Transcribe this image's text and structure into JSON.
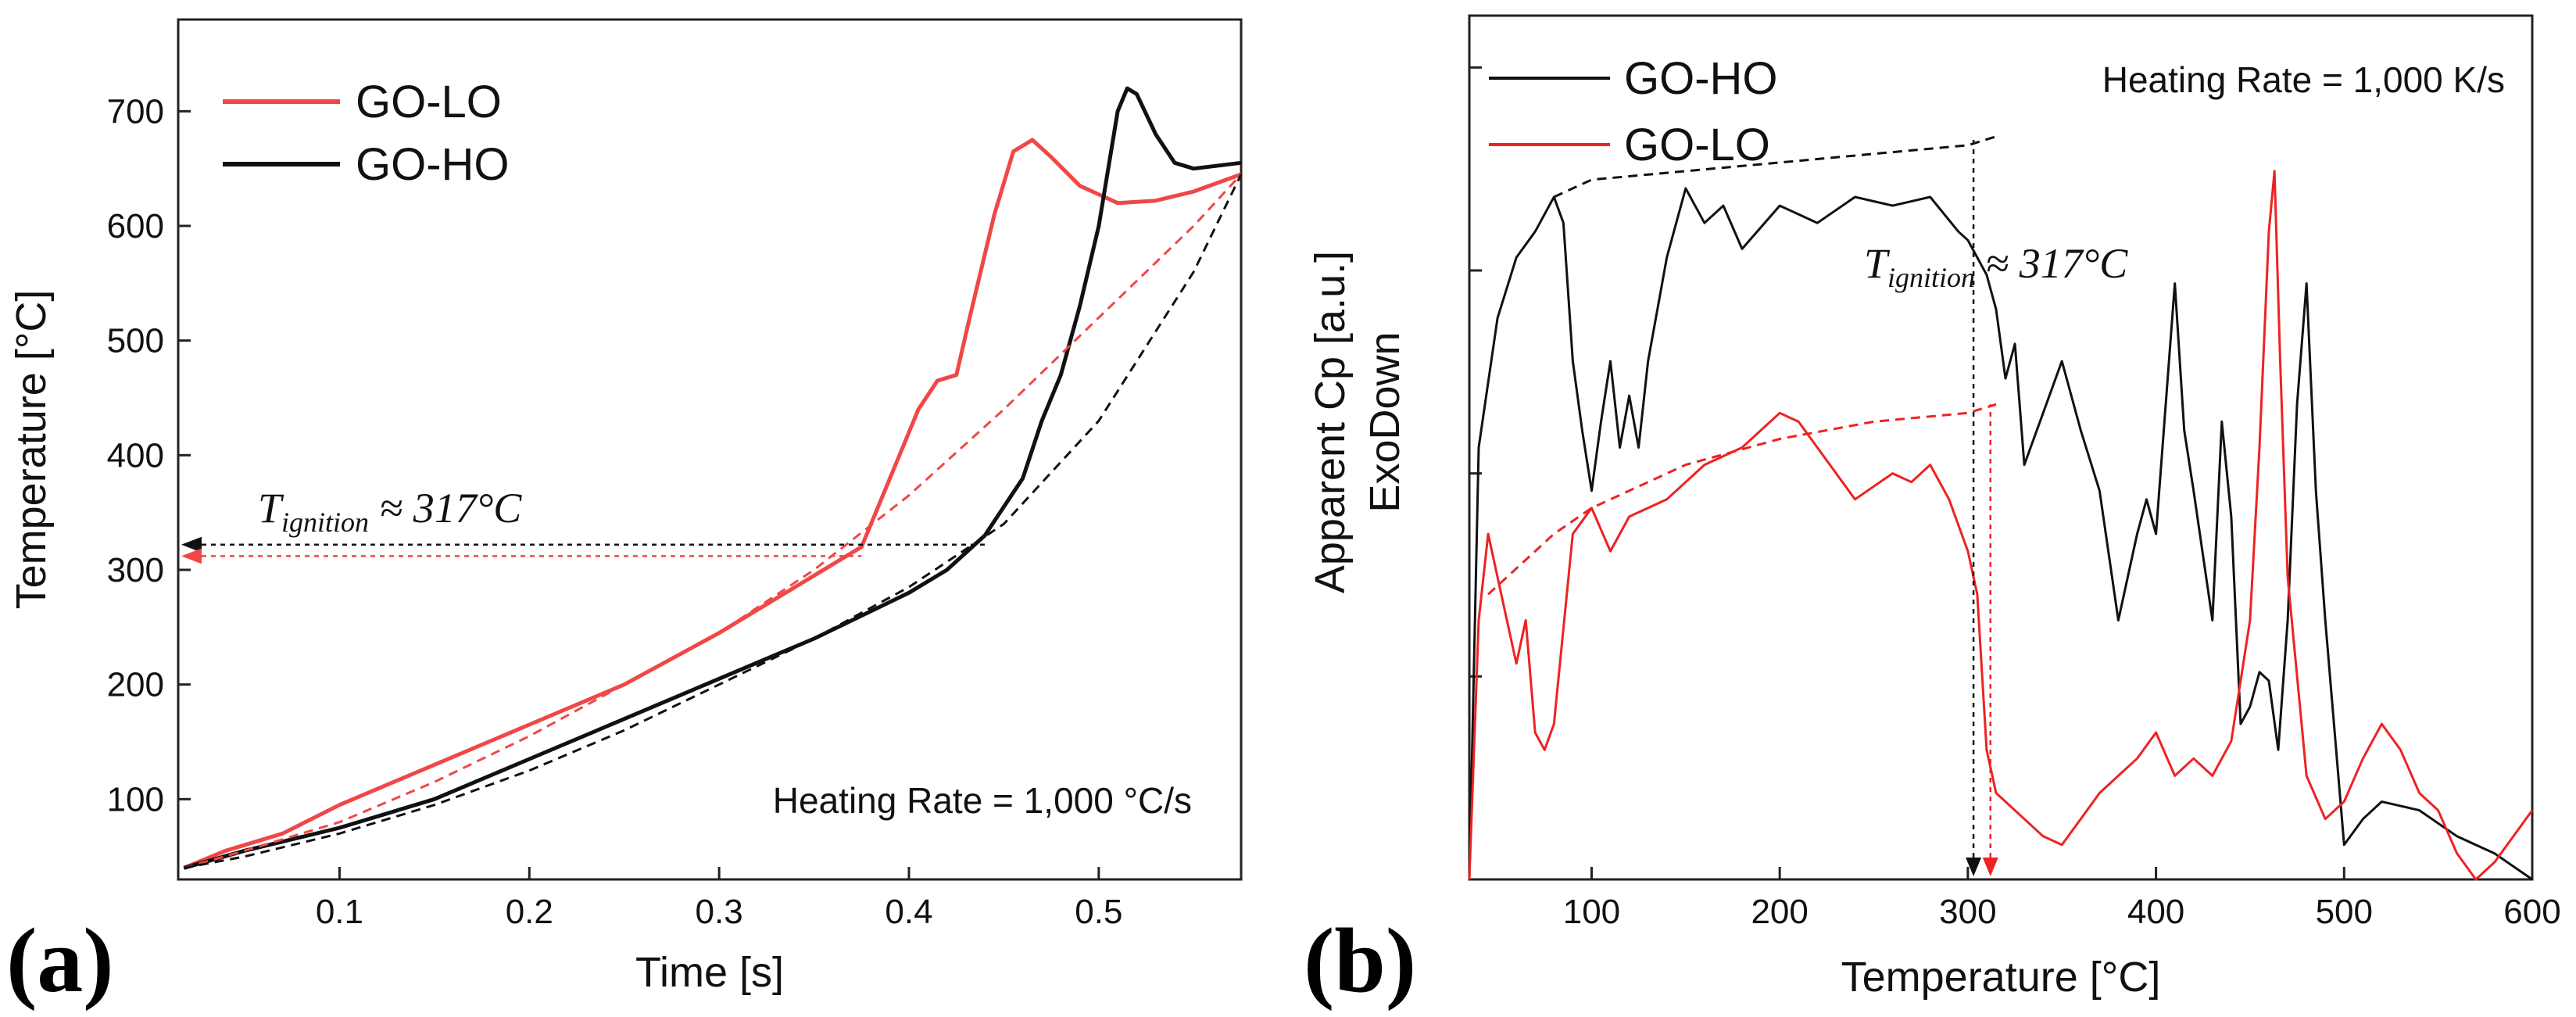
{
  "chart_data": [
    {
      "panel": "(a)",
      "type": "line",
      "xlabel": "Time [s]",
      "ylabel": "Temperature [°C]",
      "xlim": [
        0.015,
        0.575
      ],
      "ylim": [
        30,
        780
      ],
      "xticks": [
        "0.1",
        "0.2",
        "0.3",
        "0.4",
        "0.5"
      ],
      "yticks": [
        "100",
        "200",
        "300",
        "400",
        "500",
        "600",
        "700"
      ],
      "legend": {
        "position": "top-left",
        "entries": [
          "GO-LO",
          "GO-HO"
        ]
      },
      "annotation": "Heating Rate = 1,000 °C/s",
      "ignition": {
        "T": "T",
        "sub": "ignition",
        "rest": " ≈ 317°C"
      },
      "colors": {
        "GO-LO": "#f04747",
        "GO-HO": "#111111"
      },
      "series": [
        {
          "name": "GO-LO",
          "x": [
            0.018,
            0.04,
            0.07,
            0.1,
            0.15,
            0.2,
            0.25,
            0.3,
            0.35,
            0.375,
            0.385,
            0.395,
            0.405,
            0.415,
            0.425,
            0.432,
            0.445,
            0.455,
            0.465,
            0.475,
            0.49,
            0.51,
            0.53,
            0.55,
            0.575
          ],
          "y": [
            40,
            55,
            70,
            95,
            130,
            165,
            200,
            245,
            295,
            320,
            360,
            400,
            440,
            465,
            470,
            520,
            610,
            665,
            675,
            660,
            635,
            620,
            622,
            630,
            645
          ]
        },
        {
          "name": "GO-HO",
          "x": [
            0.018,
            0.05,
            0.1,
            0.15,
            0.2,
            0.25,
            0.3,
            0.35,
            0.4,
            0.42,
            0.44,
            0.46,
            0.47,
            0.48,
            0.49,
            0.5,
            0.505,
            0.51,
            0.515,
            0.52,
            0.53,
            0.54,
            0.55,
            0.575
          ],
          "y": [
            40,
            55,
            75,
            100,
            135,
            170,
            205,
            240,
            280,
            300,
            330,
            380,
            430,
            470,
            530,
            600,
            650,
            700,
            720,
            715,
            680,
            655,
            650,
            655
          ]
        },
        {
          "name": "GO-LO fit",
          "style": "dashed",
          "x": [
            0.018,
            0.05,
            0.1,
            0.15,
            0.2,
            0.25,
            0.3,
            0.35,
            0.4,
            0.45,
            0.5,
            0.55,
            0.575
          ],
          "y": [
            40,
            55,
            80,
            115,
            155,
            200,
            245,
            300,
            365,
            440,
            520,
            600,
            645
          ]
        },
        {
          "name": "GO-HO fit",
          "style": "dashed",
          "x": [
            0.018,
            0.05,
            0.1,
            0.15,
            0.2,
            0.25,
            0.3,
            0.35,
            0.4,
            0.45,
            0.5,
            0.55,
            0.575
          ],
          "y": [
            40,
            50,
            70,
            95,
            125,
            160,
            200,
            240,
            285,
            340,
            430,
            560,
            645
          ]
        }
      ],
      "ignition_lines": [
        {
          "y": 322,
          "x_end": 0.44,
          "color": "#111111"
        },
        {
          "y": 312,
          "x_end": 0.375,
          "color": "#f04747"
        }
      ]
    },
    {
      "panel": "(b)",
      "type": "line",
      "xlabel": "Temperature [°C]",
      "ylabel": "Apparent Cp [a.u.]",
      "ylabel2": "ExoDown",
      "xlim": [
        35,
        600
      ],
      "ylim": [
        0,
        1
      ],
      "xticks": [
        "100",
        "200",
        "300",
        "400",
        "500",
        "600"
      ],
      "legend": {
        "position": "top-left",
        "entries": [
          "GO-HO",
          "GO-LO"
        ]
      },
      "annotation": "Heating Rate = 1,000 K/s",
      "ignition": {
        "T": "T",
        "sub": "ignition",
        "rest": " ≈ 317°C"
      },
      "colors": {
        "GO-HO": "#111111",
        "GO-LO": "#ee2222"
      },
      "series": [
        {
          "name": "GO-HO",
          "x": [
            35,
            40,
            50,
            60,
            70,
            80,
            85,
            90,
            95,
            100,
            105,
            110,
            115,
            120,
            125,
            130,
            140,
            150,
            160,
            170,
            180,
            200,
            220,
            240,
            260,
            280,
            295,
            300,
            305,
            310,
            315,
            320,
            325,
            330,
            340,
            350,
            360,
            370,
            380,
            390,
            395,
            400,
            410,
            415,
            420,
            430,
            435,
            440,
            445,
            450,
            455,
            460,
            465,
            470,
            475,
            480,
            485,
            490,
            500,
            510,
            520,
            540,
            560,
            580,
            600
          ],
          "y": [
            0.0,
            0.5,
            0.65,
            0.72,
            0.75,
            0.79,
            0.76,
            0.6,
            0.52,
            0.45,
            0.53,
            0.6,
            0.5,
            0.56,
            0.5,
            0.6,
            0.72,
            0.8,
            0.76,
            0.78,
            0.73,
            0.78,
            0.76,
            0.79,
            0.78,
            0.79,
            0.75,
            0.74,
            0.72,
            0.7,
            0.66,
            0.58,
            0.62,
            0.48,
            0.54,
            0.6,
            0.52,
            0.45,
            0.3,
            0.4,
            0.44,
            0.4,
            0.69,
            0.52,
            0.45,
            0.3,
            0.53,
            0.42,
            0.18,
            0.2,
            0.24,
            0.23,
            0.15,
            0.3,
            0.55,
            0.69,
            0.45,
            0.3,
            0.04,
            0.07,
            0.09,
            0.08,
            0.05,
            0.03,
            0.0
          ]
        },
        {
          "name": "GO-LO",
          "x": [
            35,
            40,
            45,
            50,
            55,
            60,
            65,
            70,
            75,
            80,
            90,
            100,
            110,
            120,
            140,
            160,
            180,
            200,
            210,
            220,
            240,
            260,
            270,
            280,
            290,
            300,
            305,
            310,
            315,
            320,
            330,
            340,
            350,
            360,
            370,
            380,
            390,
            400,
            410,
            420,
            430,
            440,
            450,
            455,
            460,
            463,
            466,
            470,
            480,
            490,
            500,
            510,
            520,
            530,
            540,
            550,
            560,
            570,
            580,
            590,
            600
          ],
          "y": [
            0.0,
            0.3,
            0.4,
            0.35,
            0.3,
            0.25,
            0.3,
            0.17,
            0.15,
            0.18,
            0.4,
            0.43,
            0.38,
            0.42,
            0.44,
            0.48,
            0.5,
            0.54,
            0.53,
            0.5,
            0.44,
            0.47,
            0.46,
            0.48,
            0.44,
            0.38,
            0.33,
            0.15,
            0.1,
            0.09,
            0.07,
            0.05,
            0.04,
            0.07,
            0.1,
            0.12,
            0.14,
            0.17,
            0.12,
            0.14,
            0.12,
            0.16,
            0.3,
            0.5,
            0.75,
            0.82,
            0.6,
            0.35,
            0.12,
            0.07,
            0.09,
            0.14,
            0.18,
            0.15,
            0.1,
            0.08,
            0.03,
            0.0,
            0.02,
            0.05,
            0.08
          ]
        },
        {
          "name": "GO-HO fit",
          "style": "dashed",
          "x": [
            80,
            100,
            150,
            200,
            250,
            300,
            315
          ],
          "y": [
            0.79,
            0.81,
            0.82,
            0.83,
            0.84,
            0.85,
            0.86
          ]
        },
        {
          "name": "GO-LO fit",
          "style": "dashed",
          "x": [
            45,
            60,
            80,
            100,
            150,
            200,
            250,
            300,
            315
          ],
          "y": [
            0.33,
            0.36,
            0.4,
            0.43,
            0.48,
            0.51,
            0.53,
            0.54,
            0.55
          ]
        }
      ],
      "ignition_lines": [
        {
          "x": 303,
          "y_top": 0.86,
          "color": "#111111"
        },
        {
          "x": 312,
          "y_top": 0.55,
          "color": "#ee2222"
        }
      ]
    }
  ]
}
